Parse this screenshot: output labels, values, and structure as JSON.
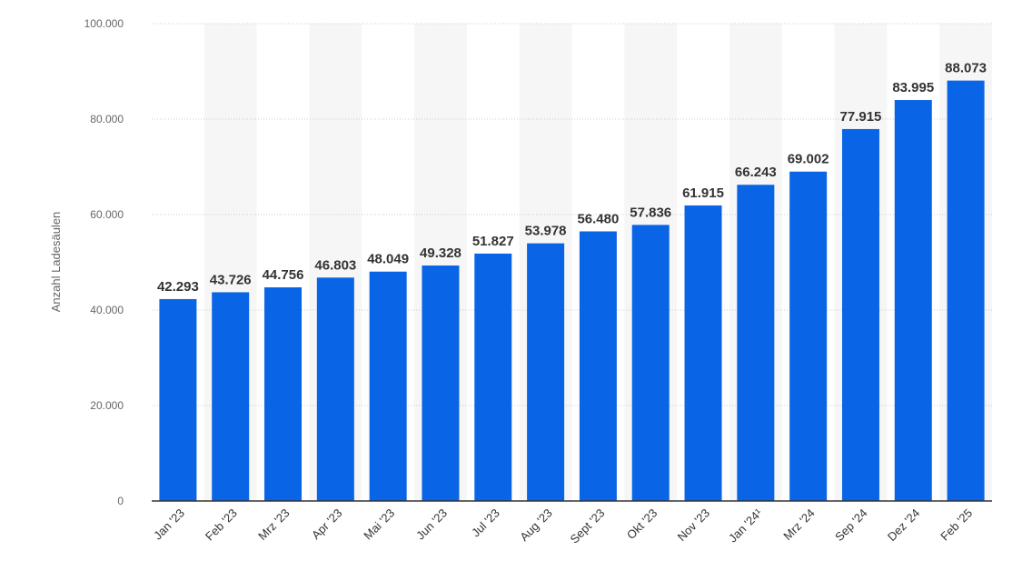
{
  "chart_data": {
    "type": "bar",
    "categories": [
      "Jan '23",
      "Feb '23",
      "Mrz '23",
      "Apr '23",
      "Mai '23",
      "Jun '23",
      "Jul '23",
      "Aug '23",
      "Sept '23",
      "Okt '23",
      "Nov '23",
      "Jan '24¹",
      "Mrz '24",
      "Sep '24",
      "Dez '24",
      "Feb '25"
    ],
    "values": [
      42293,
      43726,
      44756,
      46803,
      48049,
      49328,
      51827,
      53978,
      56480,
      57836,
      61915,
      66243,
      69002,
      77915,
      83995,
      88073
    ],
    "value_labels": [
      "42.293",
      "43.726",
      "44.756",
      "46.803",
      "48.049",
      "49.328",
      "51.827",
      "53.978",
      "56.480",
      "57.836",
      "61.915",
      "66.243",
      "69.002",
      "77.915",
      "83.995",
      "88.073"
    ],
    "title": "",
    "xlabel": "",
    "ylabel": "Anzahl Ladesäulen",
    "ylim": [
      0,
      100000
    ],
    "yticks": [
      0,
      20000,
      40000,
      60000,
      80000,
      100000
    ],
    "ytick_labels": [
      "0",
      "20.000",
      "40.000",
      "60.000",
      "80.000",
      "100.000"
    ],
    "grid": true,
    "legend": "none",
    "colors": {
      "bar": "#0a64e6",
      "band": "#f6f6f6",
      "grid": "#cccccc",
      "axis": "#333333"
    }
  }
}
